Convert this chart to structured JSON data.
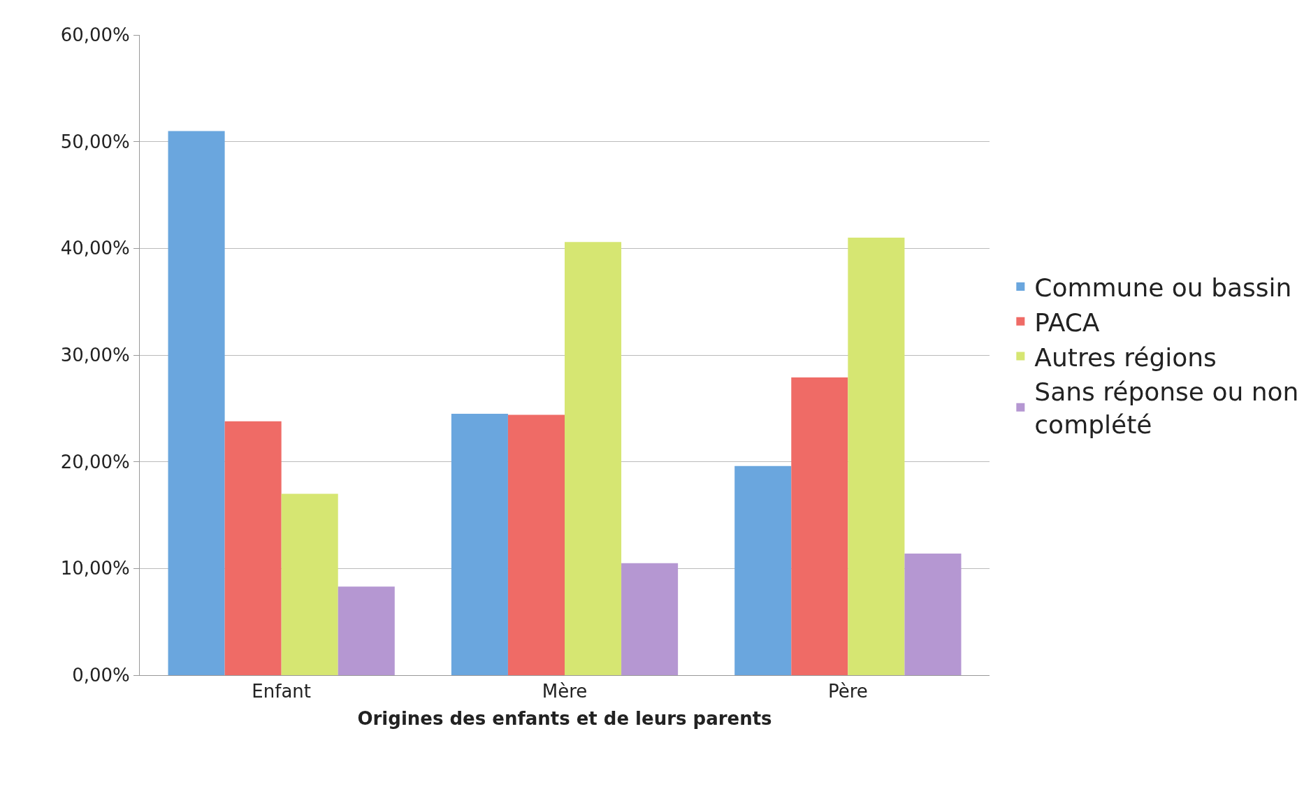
{
  "chart_data": {
    "type": "bar",
    "xlabel": "Origines des enfants et de leurs parents",
    "categories": [
      "Enfant",
      "Mère",
      "Père"
    ],
    "series": [
      {
        "name": "Commune ou bassin",
        "color": "#6aa6de",
        "values": [
          51.0,
          24.5,
          19.6
        ]
      },
      {
        "name": "PACA",
        "color": "#ef6b66",
        "values": [
          23.8,
          24.4,
          27.9
        ]
      },
      {
        "name": "Autres régions",
        "color": "#d6e672",
        "values": [
          17.0,
          40.6,
          41.0
        ]
      },
      {
        "name": "Sans réponse ou non complété",
        "color": "#b597d2",
        "values": [
          8.3,
          10.5,
          11.4
        ]
      }
    ],
    "ylim": [
      0,
      60
    ],
    "yticks": [
      {
        "value": 0,
        "label": "0,00%"
      },
      {
        "value": 10,
        "label": "10,00%"
      },
      {
        "value": 20,
        "label": "20,00%"
      },
      {
        "value": 30,
        "label": "30,00%"
      },
      {
        "value": 40,
        "label": "40,00%"
      },
      {
        "value": 50,
        "label": "50,00%"
      },
      {
        "value": 60,
        "label": "60,00%"
      }
    ],
    "grid": "y",
    "legend": "right"
  }
}
